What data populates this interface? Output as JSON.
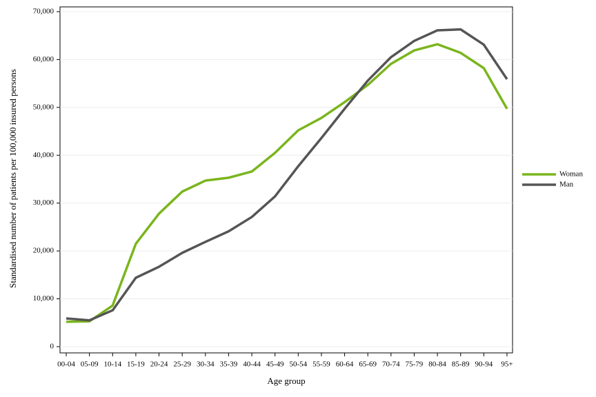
{
  "chart_data": {
    "type": "line",
    "x_label": "Age group",
    "y_label": "Standardised number of patients per 100,000 insured persons",
    "categories": [
      "00-04",
      "05-09",
      "10-14",
      "15-19",
      "20-24",
      "25-29",
      "30-34",
      "35-39",
      "40-44",
      "45-49",
      "50-54",
      "55-59",
      "60-64",
      "65-69",
      "70-74",
      "75-79",
      "80-84",
      "85-89",
      "90-94",
      "95+"
    ],
    "series": [
      {
        "name": "Woman",
        "color": "#7ab51d",
        "values": [
          5200,
          5300,
          8600,
          21500,
          27800,
          32400,
          34700,
          35300,
          36600,
          40500,
          45200,
          47800,
          51100,
          54700,
          59100,
          61900,
          63200,
          61400,
          58200,
          49700
        ]
      },
      {
        "name": "Man",
        "color": "#555555",
        "values": [
          5900,
          5500,
          7600,
          14400,
          16700,
          19600,
          21900,
          24100,
          27100,
          31400,
          37700,
          43600,
          49700,
          55600,
          60500,
          63900,
          66100,
          66300,
          63100,
          55900
        ]
      }
    ],
    "ylim": [
      -1300,
      71000
    ],
    "yticks": [
      0,
      {
        "value": 10000,
        "label": "10,000"
      },
      {
        "value": 20000,
        "label": "20,000"
      },
      {
        "value": 30000,
        "label": "30,000"
      },
      {
        "value": 40000,
        "label": "40,000"
      },
      {
        "value": 50000,
        "label": "50,000"
      },
      {
        "value": 60000,
        "label": "60,000"
      },
      {
        "value": 70000,
        "label": "70,000"
      }
    ],
    "grid": true,
    "legend": "right"
  }
}
